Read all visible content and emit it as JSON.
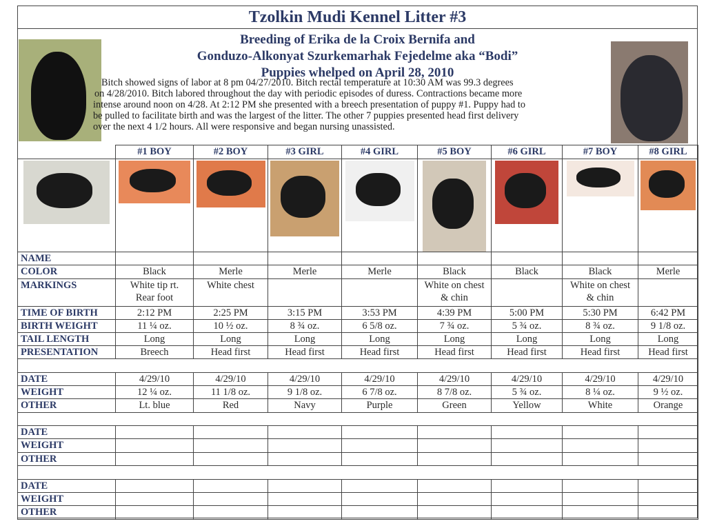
{
  "title": "Tzolkin Mudi Kennel Litter #3",
  "subtitle_lines": [
    "Breeding of Erika de la Croix Bernifa and",
    "Gonduzo-Alkonyat Szurkemarhak Fejedelme  aka “Bodi”",
    "Puppies whelped on April 28, 2010"
  ],
  "paragraph_lines": [
    "Bitch showed signs of labor at 8 pm 04/27/2010.  Bitch rectal temperature  at 10:30 AM was 99.3 degrees",
    "on 4/28/2010.  Bitch labored throughout the day with periodic episodes of duress. Contractions became more",
    "intense around noon on 4/28.  At 2:12 PM she presented with a breech presentation of puppy #1. Puppy had to",
    "be pulled to facilitate birth and was the largest of the litter.  The other 7 puppies presented head first delivery",
    "over the next 4 1/2 hours.  All were responsive and began nursing unassisted."
  ],
  "puppies": [
    {
      "header": "#1 BOY",
      "color": "Black",
      "markings": "White tip rt. Rear foot",
      "time": "2:12 PM",
      "birth_weight": "11 ¼ oz.",
      "tail": "Long",
      "presentation": "Breech",
      "date": "4/29/10",
      "weight": "12 ¼ oz.",
      "other": "Lt. blue"
    },
    {
      "header": "#2 BOY",
      "color": "Merle",
      "markings": "White chest",
      "time": "2:25 PM",
      "birth_weight": "10 ½ oz.",
      "tail": "Long",
      "presentation": "Head first",
      "date": "4/29/10",
      "weight": "11 1/8 oz.",
      "other": "Red"
    },
    {
      "header": "#3  GIRL",
      "color": "Merle",
      "markings": "",
      "time": "3:15 PM",
      "birth_weight": "8 ¾ oz.",
      "tail": "Long",
      "presentation": "Head first",
      "date": "4/29/10",
      "weight": "9 1/8 oz.",
      "other": "Navy"
    },
    {
      "header": "#4 GIRL",
      "color": "Merle",
      "markings": "",
      "time": "3:53 PM",
      "birth_weight": "6 5/8 oz.",
      "tail": "Long",
      "presentation": "Head first",
      "date": "4/29/10",
      "weight": "6 7/8 oz.",
      "other": "Purple"
    },
    {
      "header": "#5 BOY",
      "color": "Black",
      "markings": "White on chest & chin",
      "time": "4:39 PM",
      "birth_weight": "7 ¾ oz.",
      "tail": "Long",
      "presentation": "Head first",
      "date": "4/29/10",
      "weight": "8 7/8 oz.",
      "other": "Green"
    },
    {
      "header": "#6 GIRL",
      "color": "Black",
      "markings": "",
      "time": "5:00 PM",
      "birth_weight": "5 ¾ oz.",
      "tail": "Long",
      "presentation": "Head first",
      "date": "4/29/10",
      "weight": "5 ¾ oz.",
      "other": "Yellow"
    },
    {
      "header": "#7 BOY",
      "color": "Black",
      "markings": "White on chest & chin",
      "time": "5:30 PM",
      "birth_weight": "8 ¾ oz.",
      "tail": "Long",
      "presentation": "Head first",
      "date": "4/29/10",
      "weight": "8 ¼ oz.",
      "other": "White"
    },
    {
      "header": "#8 GIRL",
      "color": "Merle",
      "markings": "",
      "time": "6:42 PM",
      "birth_weight": "9 1/8 oz.",
      "tail": "Long",
      "presentation": "Head first",
      "date": "4/29/10",
      "weight": "9 ½ oz.",
      "other": "Orange"
    }
  ],
  "row_labels": {
    "name": "NAME",
    "color": "COLOR",
    "markings": "MARKINGS",
    "time": "TIME OF BIRTH",
    "birth_weight": "BIRTH WEIGHT",
    "tail": "TAIL LENGTH",
    "presentation": "PRESENTATION",
    "date": "DATE",
    "weight": "WEIGHT",
    "other": "OTHER"
  },
  "colors": {
    "heading": "#2c3a66",
    "photo_bg": [
      "#e8895a",
      "#e07a4a",
      "#c9a070",
      "#f0f0f0",
      "#d2c8b8",
      "#c0463a",
      "#f4e8e0",
      "#e28a55"
    ]
  }
}
